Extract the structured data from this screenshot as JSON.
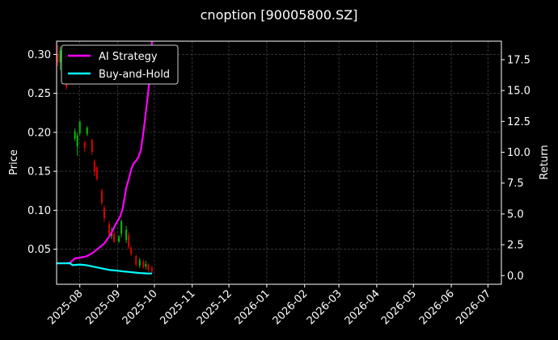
{
  "chart_data": {
    "type": "line",
    "title": "cnoption [90005800.SZ]",
    "xlabel": "",
    "ylabel": "Price",
    "y2label": "Return",
    "x_ticks": [
      "2025-08",
      "2025-09",
      "2025-10",
      "2025-11",
      "2025-12",
      "2026-01",
      "2026-02",
      "2026-03",
      "2026-04",
      "2026-05",
      "2026-06",
      "2026-07"
    ],
    "y_ticks": [
      "0.05",
      "0.10",
      "0.15",
      "0.20",
      "0.25",
      "0.30"
    ],
    "y2_ticks": [
      "0.0",
      "2.5",
      "5.0",
      "7.5",
      "10.0",
      "12.5",
      "15.0",
      "17.5"
    ],
    "xlim": [
      "2025-07-13",
      "2026-07-12"
    ],
    "ylim": [
      0.005,
      0.317
    ],
    "y2lim": [
      -0.7,
      19.0
    ],
    "grid": true,
    "legend_position": "upper-left",
    "colors": {
      "background": "#000000",
      "up": "#00c000",
      "down": "#e00000",
      "strategy": "#ff00ff",
      "hold": "#00ffff",
      "grid": "#555555"
    },
    "candles": [
      {
        "date": "2025-07-14",
        "open": 0.3,
        "close": 0.29,
        "high": 0.312,
        "low": 0.285
      },
      {
        "date": "2025-07-16",
        "open": 0.29,
        "close": 0.305,
        "high": 0.31,
        "low": 0.28
      },
      {
        "date": "2025-07-18",
        "open": 0.305,
        "close": 0.285,
        "high": 0.312,
        "low": 0.278
      },
      {
        "date": "2025-07-21",
        "open": 0.275,
        "close": 0.258,
        "high": 0.28,
        "low": 0.255
      },
      {
        "date": "2025-07-28",
        "open": 0.192,
        "close": 0.201,
        "high": 0.205,
        "low": 0.189
      },
      {
        "date": "2025-07-30",
        "open": 0.182,
        "close": 0.196,
        "high": 0.199,
        "low": 0.17
      },
      {
        "date": "2025-08-01",
        "open": 0.199,
        "close": 0.214,
        "high": 0.215,
        "low": 0.196
      },
      {
        "date": "2025-08-05",
        "open": 0.187,
        "close": 0.18,
        "high": 0.189,
        "low": 0.175
      },
      {
        "date": "2025-08-07",
        "open": 0.198,
        "close": 0.206,
        "high": 0.208,
        "low": 0.195
      },
      {
        "date": "2025-08-11",
        "open": 0.19,
        "close": 0.175,
        "high": 0.192,
        "low": 0.171
      },
      {
        "date": "2025-08-13",
        "open": 0.163,
        "close": 0.15,
        "high": 0.165,
        "low": 0.144
      },
      {
        "date": "2025-08-15",
        "open": 0.155,
        "close": 0.14,
        "high": 0.156,
        "low": 0.138
      },
      {
        "date": "2025-08-19",
        "open": 0.125,
        "close": 0.11,
        "high": 0.128,
        "low": 0.106
      },
      {
        "date": "2025-08-21",
        "open": 0.103,
        "close": 0.09,
        "high": 0.106,
        "low": 0.085
      },
      {
        "date": "2025-08-25",
        "open": 0.082,
        "close": 0.069,
        "high": 0.086,
        "low": 0.066
      },
      {
        "date": "2025-08-27",
        "open": 0.067,
        "close": 0.072,
        "high": 0.078,
        "low": 0.063
      },
      {
        "date": "2025-08-29",
        "open": 0.07,
        "close": 0.06,
        "high": 0.073,
        "low": 0.058
      },
      {
        "date": "2025-09-02",
        "open": 0.06,
        "close": 0.066,
        "high": 0.068,
        "low": 0.058
      },
      {
        "date": "2025-09-04",
        "open": 0.07,
        "close": 0.086,
        "high": 0.088,
        "low": 0.065
      },
      {
        "date": "2025-09-08",
        "open": 0.062,
        "close": 0.075,
        "high": 0.08,
        "low": 0.058
      },
      {
        "date": "2025-09-10",
        "open": 0.068,
        "close": 0.053,
        "high": 0.072,
        "low": 0.05
      },
      {
        "date": "2025-09-12",
        "open": 0.052,
        "close": 0.044,
        "high": 0.054,
        "low": 0.041
      },
      {
        "date": "2025-09-16",
        "open": 0.041,
        "close": 0.03,
        "high": 0.043,
        "low": 0.028
      },
      {
        "date": "2025-09-19",
        "open": 0.029,
        "close": 0.036,
        "high": 0.039,
        "low": 0.026
      },
      {
        "date": "2025-09-22",
        "open": 0.034,
        "close": 0.027,
        "high": 0.037,
        "low": 0.025
      },
      {
        "date": "2025-09-24",
        "open": 0.028,
        "close": 0.031,
        "high": 0.035,
        "low": 0.024
      },
      {
        "date": "2025-09-26",
        "open": 0.03,
        "close": 0.024,
        "high": 0.032,
        "low": 0.021
      },
      {
        "date": "2025-09-29",
        "open": 0.026,
        "close": 0.022,
        "high": 0.029,
        "low": 0.019
      }
    ],
    "series": [
      {
        "name": "AI Strategy",
        "axis": "right",
        "color": "#ff00ff",
        "x": [
          "2025-07-13",
          "2025-07-20",
          "2025-07-24",
          "2025-07-28",
          "2025-08-01",
          "2025-08-06",
          "2025-08-11",
          "2025-08-16",
          "2025-08-21",
          "2025-08-26",
          "2025-08-30",
          "2025-09-03",
          "2025-09-05",
          "2025-09-08",
          "2025-09-10",
          "2025-09-12",
          "2025-09-14",
          "2025-09-16",
          "2025-09-18",
          "2025-09-20",
          "2025-09-22",
          "2025-09-24",
          "2025-09-26",
          "2025-09-28",
          "2025-09-29"
        ],
        "values": [
          1.0,
          1.0,
          1.05,
          1.4,
          1.45,
          1.55,
          1.8,
          2.2,
          2.6,
          3.3,
          4.1,
          4.8,
          5.4,
          7.1,
          7.8,
          8.6,
          9.1,
          9.3,
          9.6,
          10.2,
          11.6,
          13.2,
          14.9,
          16.7,
          19.0
        ]
      },
      {
        "name": "Buy-and-Hold",
        "axis": "right",
        "color": "#00ffff",
        "x": [
          "2025-07-13",
          "2025-07-20",
          "2025-07-24",
          "2025-07-26",
          "2025-08-01",
          "2025-08-06",
          "2025-08-11",
          "2025-08-16",
          "2025-08-21",
          "2025-08-26",
          "2025-09-01",
          "2025-09-05",
          "2025-09-10",
          "2025-09-15",
          "2025-09-20",
          "2025-09-25",
          "2025-09-29"
        ],
        "values": [
          1.0,
          1.0,
          1.0,
          0.85,
          0.9,
          0.85,
          0.75,
          0.65,
          0.55,
          0.45,
          0.4,
          0.35,
          0.3,
          0.25,
          0.2,
          0.18,
          0.17
        ]
      }
    ]
  }
}
